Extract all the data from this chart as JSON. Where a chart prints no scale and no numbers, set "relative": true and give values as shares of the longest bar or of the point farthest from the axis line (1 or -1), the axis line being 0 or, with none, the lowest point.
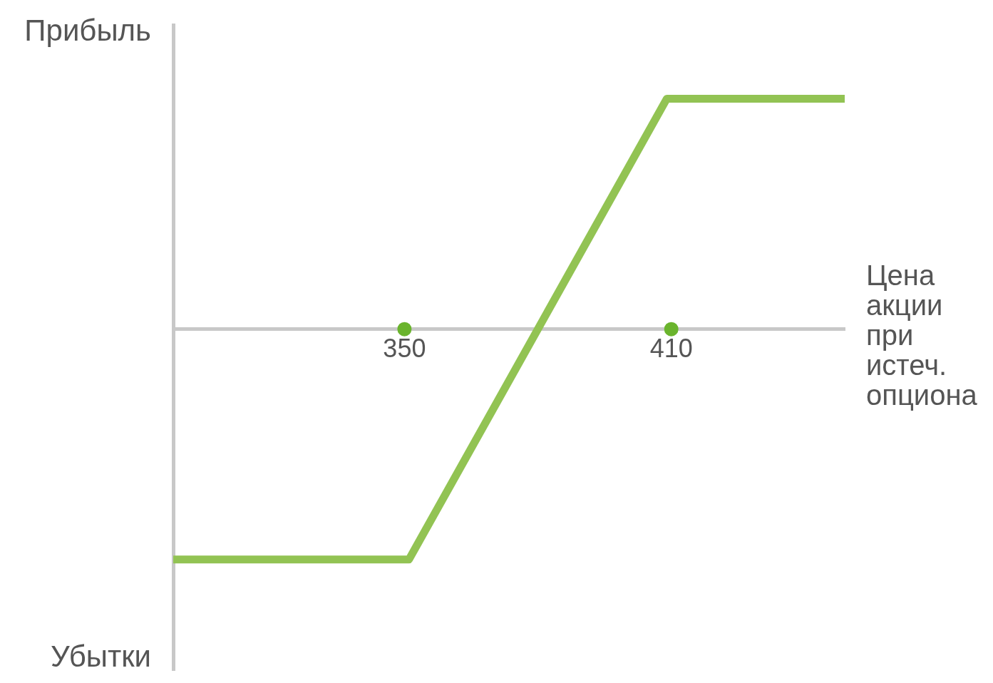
{
  "chart_data": {
    "type": "line",
    "relative": true,
    "ylabel": "Прибыль",
    "xlabel": "Цена акции при истеч. опциона",
    "annotations": [
      "Убытки"
    ],
    "xlim": [
      298,
      449
    ],
    "xticks": [
      350,
      410
    ],
    "series": [
      {
        "color": "#92c353",
        "x": [
          298,
          351,
          409,
          449
        ],
        "values": [
          -1,
          -1,
          1,
          1
        ]
      },
      {
        "type": "scatter",
        "marker": "circle",
        "color": "#6ab42d",
        "x": [
          350,
          410
        ],
        "values": [
          0,
          0
        ]
      }
    ],
    "marker": "none",
    "line_style": "solid",
    "grid": false,
    "legend": false
  }
}
